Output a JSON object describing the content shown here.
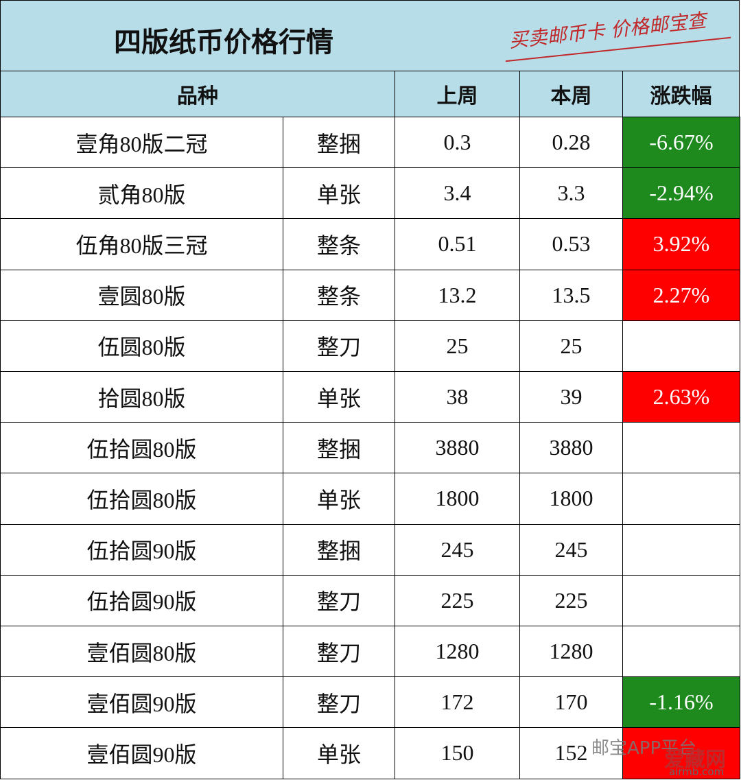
{
  "header": {
    "title": "四版纸币价格行情",
    "slogan": "买卖邮币卡 价格邮宝查"
  },
  "table": {
    "columns": [
      "品种",
      "上周",
      "本周",
      "涨跌幅"
    ],
    "rows": [
      [
        "壹角80版二冠",
        "整捆",
        "0.3",
        "0.28",
        "-6.67%"
      ],
      [
        "贰角80版",
        "单张",
        "3.4",
        "3.3",
        "-2.94%"
      ],
      [
        "伍角80版三冠",
        "整条",
        "0.51",
        "0.53",
        "3.92%"
      ],
      [
        "壹圆80版",
        "整条",
        "13.2",
        "13.5",
        "2.27%"
      ],
      [
        "伍圆80版",
        "整刀",
        "25",
        "25",
        null
      ],
      [
        "拾圆80版",
        "单张",
        "38",
        "39",
        "2.63%"
      ],
      [
        "伍拾圆80版",
        "整捆",
        "3880",
        "3880",
        null
      ],
      [
        "伍拾圆80版",
        "单张",
        "1800",
        "1800",
        null
      ],
      [
        "伍拾圆90版",
        "整捆",
        "245",
        "245",
        null
      ],
      [
        "伍拾圆90版",
        "整刀",
        "225",
        "225",
        null
      ],
      [
        "壹佰圆80版",
        "整刀",
        "1280",
        "1280",
        null
      ],
      [
        "壹佰圆90版",
        "整刀",
        "172",
        "170",
        "-1.16%"
      ],
      [
        "壹佰圆90版",
        "单张",
        "150",
        "152",
        null
      ]
    ],
    "trend": [
      "down",
      "down",
      "up",
      "up",
      null,
      "up",
      null,
      null,
      null,
      null,
      null,
      "down",
      "up"
    ],
    "trend_colors": {
      "up": "#ff0000",
      "down": "#1e8a1e"
    }
  },
  "watermark": {
    "source": "邮宝APP平台",
    "site": "爱藏网",
    "url": "airmb.com"
  }
}
